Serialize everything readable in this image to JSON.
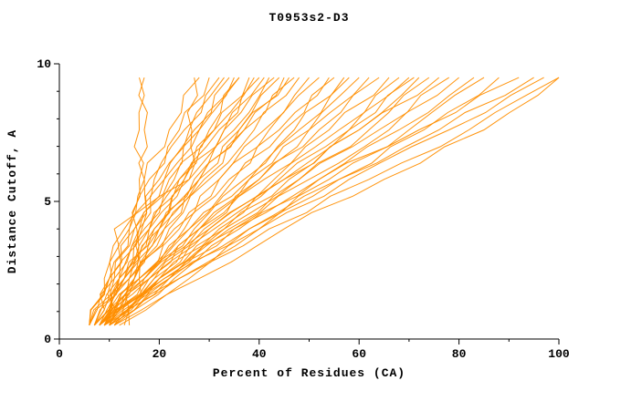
{
  "window": {
    "background": "#ffffff"
  },
  "chart_data": {
    "type": "line",
    "title": "T0953s2-D3",
    "xlabel": "Percent of Residues (CA)",
    "ylabel": "Distance Cutoff, A",
    "xlim": [
      0,
      100
    ],
    "ylim": [
      0,
      10
    ],
    "x_ticks_major": [
      0,
      20,
      40,
      60,
      80,
      100
    ],
    "x_minor_step": 10,
    "y_ticks_major": [
      0,
      5,
      10
    ],
    "y_minor_step": 1,
    "grid": false,
    "legend": "none",
    "line_color": "#ff8e00",
    "axis_color": "#000000",
    "y_anchors": [
      0.5,
      2.2,
      4.0,
      5.8,
      7.6,
      9.5
    ],
    "series": [
      {
        "x": [
          13,
          15,
          15.5,
          16,
          16,
          16
        ]
      },
      {
        "x": [
          14,
          16,
          16.5,
          17,
          17,
          17
        ]
      },
      {
        "x": [
          10,
          10.5,
          11,
          26,
          26.5,
          27
        ]
      },
      {
        "x": [
          6,
          10,
          14,
          19,
          25,
          32
        ]
      },
      {
        "x": [
          7,
          11,
          15,
          20,
          26,
          33
        ]
      },
      {
        "x": [
          6,
          11,
          16,
          22,
          28,
          35
        ]
      },
      {
        "x": [
          7,
          12,
          17,
          23,
          30,
          36
        ]
      },
      {
        "x": [
          8,
          13,
          18,
          24,
          31,
          38
        ]
      },
      {
        "x": [
          6,
          12,
          18,
          25,
          32,
          40
        ]
      },
      {
        "x": [
          7,
          13,
          19,
          26,
          33,
          41
        ]
      },
      {
        "x": [
          8,
          14,
          20,
          27,
          35,
          42
        ]
      },
      {
        "x": [
          9,
          15,
          21,
          28,
          36,
          44
        ]
      },
      {
        "x": [
          7,
          14,
          21,
          29,
          37,
          45
        ]
      },
      {
        "x": [
          6,
          13,
          20,
          28,
          37,
          47
        ]
      },
      {
        "x": [
          8,
          15,
          22,
          30,
          39,
          48
        ]
      },
      {
        "x": [
          9,
          16,
          24,
          32,
          41,
          50
        ]
      },
      {
        "x": [
          7,
          15,
          23,
          32,
          42,
          52
        ]
      },
      {
        "x": [
          8,
          16,
          25,
          34,
          44,
          54
        ]
      },
      {
        "x": [
          10,
          17,
          26,
          35,
          45,
          55
        ]
      },
      {
        "x": [
          9,
          17,
          27,
          37,
          47,
          57
        ]
      },
      {
        "x": [
          8,
          18,
          28,
          38,
          48,
          58
        ]
      },
      {
        "x": [
          10,
          19,
          29,
          40,
          50,
          60
        ]
      },
      {
        "x": [
          7,
          16,
          26,
          38,
          50,
          62
        ]
      },
      {
        "x": [
          9,
          18,
          28,
          40,
          52,
          64
        ]
      },
      {
        "x": [
          8,
          17,
          28,
          41,
          54,
          66
        ]
      },
      {
        "x": [
          10,
          19,
          30,
          43,
          56,
          68
        ]
      },
      {
        "x": [
          9,
          20,
          32,
          45,
          58,
          70
        ]
      },
      {
        "x": [
          11,
          21,
          33,
          46,
          60,
          72
        ]
      },
      {
        "x": [
          10,
          22,
          34,
          48,
          62,
          74
        ]
      },
      {
        "x": [
          8,
          18,
          30,
          45,
          60,
          76
        ]
      },
      {
        "x": [
          9,
          20,
          33,
          48,
          64,
          78
        ]
      },
      {
        "x": [
          10,
          22,
          35,
          50,
          66,
          80
        ]
      },
      {
        "x": [
          9,
          21,
          36,
          52,
          68,
          83
        ]
      },
      {
        "x": [
          11,
          23,
          38,
          54,
          70,
          85
        ]
      },
      {
        "x": [
          10,
          24,
          40,
          56,
          73,
          88
        ]
      },
      {
        "x": [
          8,
          20,
          35,
          52,
          72,
          92
        ]
      },
      {
        "x": [
          9,
          22,
          38,
          56,
          76,
          95
        ]
      },
      {
        "x": [
          10,
          24,
          40,
          58,
          78,
          97
        ]
      },
      {
        "x": [
          11,
          26,
          42,
          62,
          82,
          100
        ]
      },
      {
        "x": [
          12,
          28,
          45,
          65,
          85,
          100
        ]
      },
      {
        "x": [
          6,
          9,
          13,
          17,
          22,
          28
        ]
      },
      {
        "x": [
          7,
          10,
          14,
          18,
          24,
          30
        ]
      },
      {
        "x": [
          6,
          10,
          15,
          21,
          27,
          34
        ]
      },
      {
        "x": [
          8,
          12,
          16,
          21,
          28,
          36
        ]
      },
      {
        "x": [
          7,
          12,
          18,
          24,
          31,
          39
        ]
      },
      {
        "x": [
          9,
          14,
          19,
          25,
          33,
          43
        ]
      },
      {
        "x": [
          8,
          13,
          20,
          28,
          36,
          46
        ]
      },
      {
        "x": [
          11,
          20,
          31,
          44,
          58,
          71
        ]
      }
    ]
  }
}
